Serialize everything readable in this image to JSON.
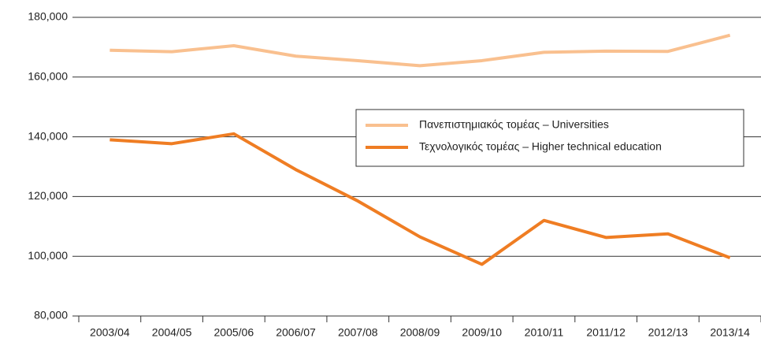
{
  "chart_data": {
    "type": "line",
    "categories": [
      "2003/04",
      "2004/05",
      "2005/06",
      "2006/07",
      "2007/08",
      "2008/09",
      "2009/10",
      "2010/11",
      "2011/12",
      "2012/13",
      "2013/14"
    ],
    "series": [
      {
        "name": "Πανεπιστημιακός τομέας – Universities",
        "color": "#f9c08f",
        "values": [
          169000,
          168500,
          170500,
          167000,
          165500,
          163800,
          165500,
          168300,
          168700,
          168600,
          174000
        ]
      },
      {
        "name": "Τεχνολογικός τομέας – Higher technical education",
        "color": "#ef7d23",
        "values": [
          139000,
          137700,
          141000,
          129000,
          118500,
          106500,
          97300,
          112000,
          106300,
          107500,
          99500
        ]
      }
    ],
    "ylim": [
      80000,
      180000
    ],
    "yticks": [
      {
        "value": 80000,
        "label": "80,000"
      },
      {
        "value": 100000,
        "label": "100,000"
      },
      {
        "value": 120000,
        "label": "120,000"
      },
      {
        "value": 140000,
        "label": "140,000"
      },
      {
        "value": 160000,
        "label": "160,000"
      },
      {
        "value": 180000,
        "label": "180,000"
      }
    ],
    "grid": true,
    "legend": "right"
  }
}
